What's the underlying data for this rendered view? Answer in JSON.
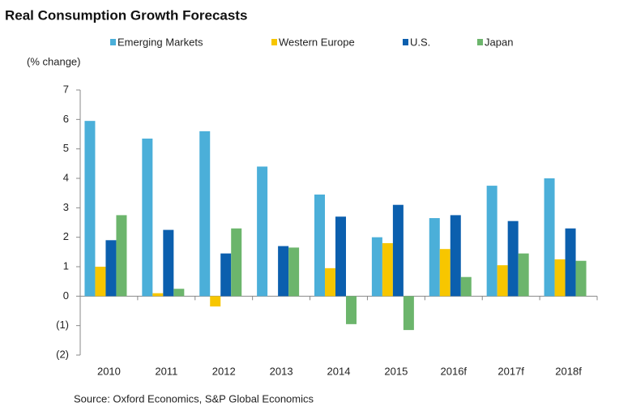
{
  "chart_data": {
    "type": "bar",
    "title": "Real Consumption Growth Forecasts",
    "y_label": "(% change)",
    "source": "Source: Oxford Economics, S&P Global Economics",
    "categories": [
      "2010",
      "2011",
      "2012",
      "2013",
      "2014",
      "2015",
      "2016f",
      "2017f",
      "2018f"
    ],
    "series": [
      {
        "name": "Emerging Markets",
        "color": "#4bafd9",
        "values": [
          5.95,
          5.35,
          5.6,
          4.4,
          3.45,
          2.0,
          2.65,
          3.75,
          4.0
        ]
      },
      {
        "name": "Western Europe",
        "color": "#f7c600",
        "values": [
          1.0,
          0.1,
          -0.35,
          0,
          0.95,
          1.8,
          1.6,
          1.05,
          1.25
        ]
      },
      {
        "name": "U.S.",
        "color": "#0b5fae",
        "values": [
          1.9,
          2.25,
          1.45,
          1.7,
          2.7,
          3.1,
          2.75,
          2.55,
          2.3
        ]
      },
      {
        "name": "Japan",
        "color": "#6cb56c",
        "values": [
          2.75,
          0.25,
          2.3,
          1.65,
          -0.95,
          -1.15,
          0.65,
          1.45,
          1.2
        ]
      }
    ],
    "ylim": [
      -2,
      7
    ],
    "yticks": [
      {
        "value": -2,
        "label": "(2)"
      },
      {
        "value": -1,
        "label": "(1)"
      },
      0,
      1,
      2,
      3,
      4,
      5,
      6,
      7
    ],
    "grid": false
  }
}
